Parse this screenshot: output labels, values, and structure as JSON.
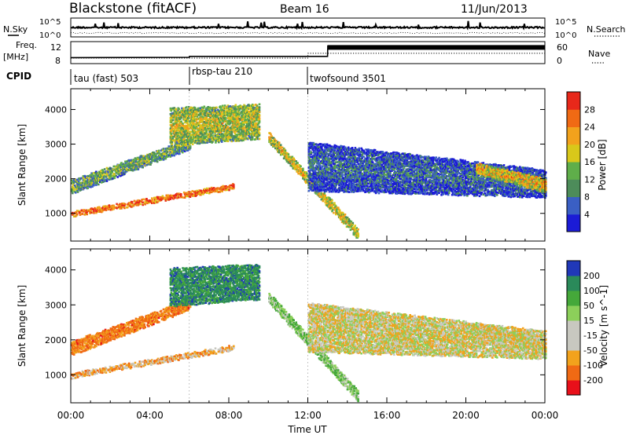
{
  "header": {
    "title": "Blackstone (fitACF)",
    "beam": "Beam 16",
    "date": "11/Jun/2013"
  },
  "noise_panel": {
    "left_label": "N.Sky",
    "right_label": "N.Search",
    "left_ticks": [
      "10^5",
      "10^0"
    ],
    "right_ticks": [
      "10^5",
      "10^0"
    ]
  },
  "freq_panel": {
    "left_label_1": "Freq.",
    "left_label_2": "[MHz]",
    "right_label": "Nave",
    "left_ticks": [
      "12",
      "8"
    ],
    "right_ticks": [
      "60",
      "0"
    ],
    "freq_mhz": [
      {
        "t": 0,
        "v": 8.9
      },
      {
        "t": 6,
        "v": 9.0
      },
      {
        "t": 6.01,
        "v": 9.3
      },
      {
        "t": 13,
        "v": 9.3
      },
      {
        "t": 13.01,
        "v": 12.6
      },
      {
        "t": 24,
        "v": 12.6
      }
    ],
    "nave": [
      {
        "t": 0,
        "v": 15
      },
      {
        "t": 12,
        "v": 15
      },
      {
        "t": 12.01,
        "v": 28
      },
      {
        "t": 24,
        "v": 28
      }
    ]
  },
  "cpid": {
    "label": "CPID",
    "modes": [
      {
        "start_hour": 0,
        "text": "tau (fast) 503"
      },
      {
        "start_hour": 6,
        "text": "rbsp-tau 210"
      },
      {
        "start_hour": 12,
        "text": "twofsound 3501"
      }
    ]
  },
  "colors": {
    "power": [
      "#1b1bd6",
      "#3a5fc4",
      "#4d8c5a",
      "#5fae4a",
      "#d9c81a",
      "#f2a21c",
      "#f06a14",
      "#e8281a"
    ],
    "velocity": [
      "#e8101a",
      "#f06a14",
      "#f2a21c",
      "#c8c8c0",
      "#c8c8c0",
      "#8ccf5a",
      "#45a83a",
      "#2a8a5a",
      "#2038b8"
    ]
  },
  "chart_data": [
    {
      "type": "heatmap",
      "title": "Power",
      "xlabel": "Time UT",
      "ylabel": "Slant Range [km]",
      "xlim": [
        0,
        24
      ],
      "ylim": [
        200,
        4600
      ],
      "x_tick_labels": [
        "00:00",
        "04:00",
        "08:00",
        "12:00",
        "16:00",
        "20:00",
        "00:00"
      ],
      "y_ticks": [
        1000,
        2000,
        3000,
        4000
      ],
      "colorbar": {
        "label": "Power [dB]",
        "ticks": [
          "4",
          "8",
          "12",
          "16",
          "20",
          "24",
          "28"
        ]
      },
      "echo_regions": [
        {
          "name": "strong-low-band",
          "t0": 0,
          "t1": 8.2,
          "r0_start": 950,
          "r0_end": 1750,
          "r1_start": 1100,
          "r1_end": 1900,
          "power_db": 28
        },
        {
          "name": "rising-band",
          "t0": 0,
          "t1": 6,
          "r0_start": 1600,
          "r0_end": 2900,
          "r1_start": 2000,
          "r1_end": 3200,
          "power_db": 14
        },
        {
          "name": "upper-patch",
          "t0": 5,
          "t1": 9.5,
          "r0_start": 3000,
          "r0_end": 3200,
          "r1_start": 4100,
          "r1_end": 4200,
          "power_db": 18
        },
        {
          "name": "descending-streak",
          "t0": 10,
          "t1": 14.5,
          "r0_start": 3100,
          "r0_end": 300,
          "r1_start": 3400,
          "r1_end": 600,
          "power_db": 20
        },
        {
          "name": "late-scatter",
          "t0": 12,
          "t1": 24,
          "r0_start": 1700,
          "r0_end": 1500,
          "r1_start": 3100,
          "r1_end": 2300,
          "power_db": 8
        },
        {
          "name": "evening-band",
          "t0": 20.5,
          "t1": 24,
          "r0_start": 2200,
          "r0_end": 1650,
          "r1_start": 2500,
          "r1_end": 2050,
          "power_db": 22
        }
      ]
    },
    {
      "type": "heatmap",
      "title": "Velocity",
      "xlabel": "Time UT",
      "ylabel": "Slant Range [km]",
      "xlim": [
        0,
        24
      ],
      "ylim": [
        200,
        4600
      ],
      "x_tick_labels": [
        "00:00",
        "04:00",
        "08:00",
        "12:00",
        "16:00",
        "20:00",
        "00:00"
      ],
      "y_ticks": [
        1000,
        2000,
        3000,
        4000
      ],
      "colorbar": {
        "label": "Velocity [m s^-1]",
        "ticks": [
          "200",
          "100",
          "50",
          "15",
          "-15",
          "-50",
          "-100",
          "-200"
        ]
      },
      "echo_regions": [
        {
          "name": "low-band",
          "t0": 0,
          "t1": 8.2,
          "r0_start": 950,
          "r0_end": 1750,
          "r1_start": 1100,
          "r1_end": 1900,
          "velocity": -30
        },
        {
          "name": "rising-band",
          "t0": 0,
          "t1": 6,
          "r0_start": 1600,
          "r0_end": 2900,
          "r1_start": 2000,
          "r1_end": 3200,
          "velocity": -60
        },
        {
          "name": "upper-patch",
          "t0": 5,
          "t1": 9.5,
          "r0_start": 3000,
          "r0_end": 3200,
          "r1_start": 4100,
          "r1_end": 4200,
          "velocity": 120
        },
        {
          "name": "descending-streak",
          "t0": 10,
          "t1": 14.5,
          "r0_start": 3100,
          "r0_end": 300,
          "r1_start": 3400,
          "r1_end": 600,
          "velocity": 40
        },
        {
          "name": "late-scatter",
          "t0": 12,
          "t1": 24,
          "r0_start": 1700,
          "r0_end": 1500,
          "r1_start": 3100,
          "r1_end": 2300,
          "velocity": 0
        },
        {
          "name": "evening-band",
          "t0": 20.5,
          "t1": 24,
          "r0_start": 2200,
          "r0_end": 1650,
          "r1_start": 2500,
          "r1_end": 2050,
          "velocity": 0
        }
      ]
    }
  ]
}
